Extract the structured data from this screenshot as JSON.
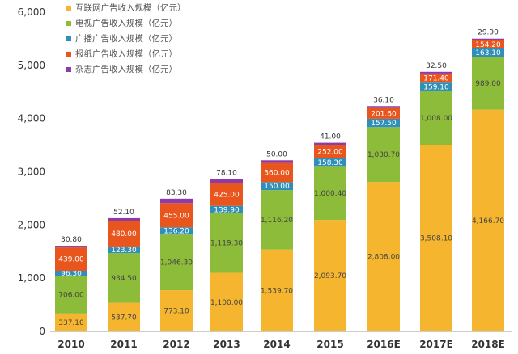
{
  "chart_data": {
    "type": "bar",
    "stacked": true,
    "categories": [
      "2010",
      "2011",
      "2012",
      "2013",
      "2014",
      "2015",
      "2016E",
      "2017E",
      "2018E"
    ],
    "series": [
      {
        "name": "互联网广告收入规模（亿元）",
        "color": "#f5b52e",
        "values": [
          337.1,
          537.7,
          773.1,
          1100.0,
          1539.7,
          2093.7,
          2808.0,
          3508.1,
          4166.7
        ]
      },
      {
        "name": "电视广告收入规模（亿元）",
        "color": "#8dbb3a",
        "values": [
          706.0,
          934.5,
          1046.3,
          1119.3,
          1116.2,
          1000.4,
          1030.7,
          1008.0,
          989.0
        ]
      },
      {
        "name": "广播广告收入规模（亿元）",
        "color": "#2f8fb8",
        "values": [
          96.3,
          123.3,
          136.2,
          139.9,
          150.0,
          158.3,
          157.5,
          159.1,
          163.1
        ]
      },
      {
        "name": "报纸广告收入规模（亿元）",
        "color": "#e8561e",
        "values": [
          439.0,
          480.0,
          455.0,
          425.0,
          360.0,
          252.0,
          201.6,
          171.4,
          154.2
        ]
      },
      {
        "name": "杂志广告收入规模（亿元）",
        "color": "#8e3aa8",
        "values": [
          30.8,
          52.1,
          83.3,
          78.1,
          50.0,
          41.0,
          36.1,
          32.5,
          29.9
        ]
      }
    ],
    "yticks": [
      "0",
      "1,000",
      "2,000",
      "3,000",
      "4,000",
      "5,000",
      "6,000"
    ],
    "ylim": [
      0,
      6000
    ],
    "grid": false,
    "legend": "top-left",
    "title": "",
    "xlabel": "",
    "ylabel": ""
  }
}
